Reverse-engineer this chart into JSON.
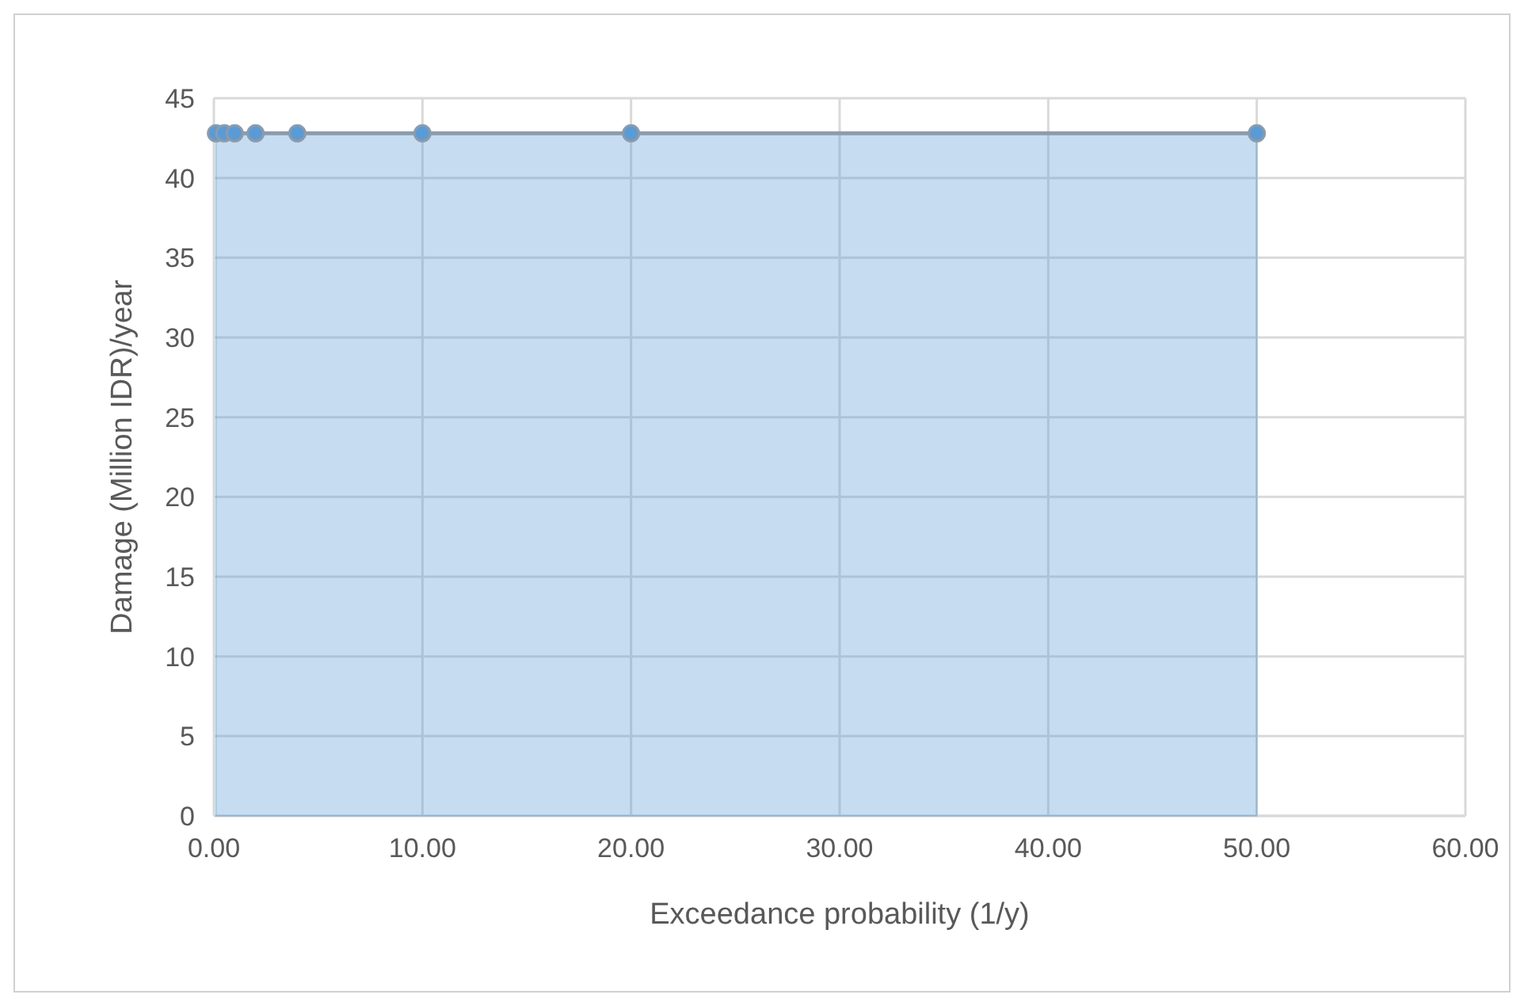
{
  "chart_data": {
    "type": "area",
    "xlabel": "Exceedance probability (1/y)",
    "ylabel": "Damage (Million IDR)/year",
    "xlim": [
      0,
      60
    ],
    "xticks": [
      {
        "value": 0,
        "label": "0.00"
      },
      {
        "value": 10,
        "label": "10.00"
      },
      {
        "value": 20,
        "label": "20.00"
      },
      {
        "value": 30,
        "label": "30.00"
      },
      {
        "value": 40,
        "label": "40.00"
      },
      {
        "value": 50,
        "label": "50.00"
      },
      {
        "value": 60,
        "label": "60.00"
      }
    ],
    "ylim": [
      0,
      45
    ],
    "yticks": [
      0,
      5,
      10,
      15,
      20,
      25,
      30,
      35,
      40,
      45
    ],
    "grid": true,
    "marker": "circle",
    "series": [
      {
        "color": "#5b9bd5",
        "x": [
          0.1,
          0.5,
          1,
          2,
          4,
          10,
          20,
          50
        ],
        "values": [
          42.8,
          42.8,
          42.8,
          42.8,
          42.8,
          42.8,
          42.8,
          42.8
        ]
      }
    ]
  }
}
